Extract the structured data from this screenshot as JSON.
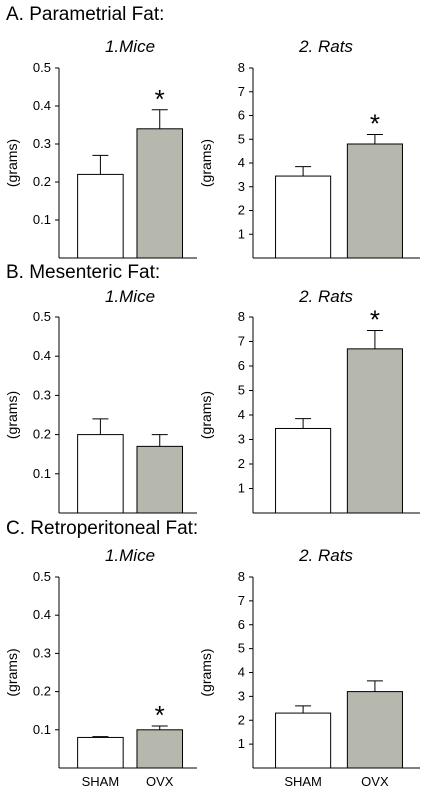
{
  "sections": [
    {
      "title": "A. Parametrial Fat:"
    },
    {
      "title": "B. Mesenteric Fat:"
    },
    {
      "title": "C. Retroperitoneal Fat:"
    }
  ],
  "colors": {
    "sham_fill": "#ffffff",
    "ovx_fill": "#b6b7ad",
    "stroke": "#000000"
  },
  "chart_data": [
    {
      "type": "bar",
      "section": "A. Parametrial Fat:",
      "title": "1.Mice",
      "ylabel": "(grams)",
      "categories": [
        "SHAM",
        "OVX"
      ],
      "show_categories": false,
      "values": [
        0.22,
        0.34
      ],
      "errors": [
        0.05,
        0.05
      ],
      "significant": [
        false,
        true
      ],
      "ylim": [
        0,
        0.5
      ],
      "yticks": [
        0.1,
        0.2,
        0.3,
        0.4,
        0.5
      ],
      "ytick_labels": [
        "0.1",
        "0.2",
        "0.3",
        "0.4",
        "0.5"
      ],
      "significance_marker": "*"
    },
    {
      "type": "bar",
      "section": "A. Parametrial Fat:",
      "title": "2. Rats",
      "ylabel": "(grams)",
      "categories": [
        "SHAM",
        "OVX"
      ],
      "show_categories": false,
      "values": [
        3.45,
        4.8
      ],
      "errors": [
        0.4,
        0.4
      ],
      "significant": [
        false,
        true
      ],
      "ylim": [
        0,
        8
      ],
      "yticks": [
        1,
        2,
        3,
        4,
        5,
        6,
        7,
        8
      ],
      "ytick_labels": [
        "1",
        "2",
        "3",
        "4",
        "5",
        "6",
        "7",
        "8"
      ],
      "significance_marker": "*"
    },
    {
      "type": "bar",
      "section": "B. Mesenteric Fat:",
      "title": "1.Mice",
      "ylabel": "(grams)",
      "categories": [
        "SHAM",
        "OVX"
      ],
      "show_categories": false,
      "values": [
        0.2,
        0.17
      ],
      "errors": [
        0.04,
        0.03
      ],
      "significant": [
        false,
        false
      ],
      "ylim": [
        0,
        0.5
      ],
      "yticks": [
        0.1,
        0.2,
        0.3,
        0.4,
        0.5
      ],
      "ytick_labels": [
        "0.1",
        "0.2",
        "0.3",
        "0.4",
        "0.5"
      ],
      "significance_marker": "*"
    },
    {
      "type": "bar",
      "section": "B. Mesenteric Fat:",
      "title": "2. Rats",
      "ylabel": "(grams)",
      "categories": [
        "SHAM",
        "OVX"
      ],
      "show_categories": false,
      "values": [
        3.45,
        6.7
      ],
      "errors": [
        0.4,
        0.75
      ],
      "significant": [
        false,
        true
      ],
      "ylim": [
        0,
        8
      ],
      "yticks": [
        1,
        2,
        3,
        4,
        5,
        6,
        7,
        8
      ],
      "ytick_labels": [
        "1",
        "2",
        "3",
        "4",
        "5",
        "6",
        "7",
        "8"
      ],
      "significance_marker": "*"
    },
    {
      "type": "bar",
      "section": "C. Retroperitoneal Fat:",
      "title": "1.Mice",
      "ylabel": "(grams)",
      "categories": [
        "SHAM",
        "OVX"
      ],
      "show_categories": true,
      "values": [
        0.08,
        0.1
      ],
      "errors": [
        0.002,
        0.01
      ],
      "significant": [
        false,
        true
      ],
      "ylim": [
        0,
        0.5
      ],
      "yticks": [
        0.1,
        0.2,
        0.3,
        0.4,
        0.5
      ],
      "ytick_labels": [
        "0.1",
        "0.2",
        "0.3",
        "0.4",
        "0.5"
      ],
      "significance_marker": "*"
    },
    {
      "type": "bar",
      "section": "C. Retroperitoneal Fat:",
      "title": "2. Rats",
      "ylabel": "(grams)",
      "categories": [
        "SHAM",
        "OVX"
      ],
      "show_categories": true,
      "values": [
        2.3,
        3.2
      ],
      "errors": [
        0.3,
        0.45
      ],
      "significant": [
        false,
        false
      ],
      "ylim": [
        0,
        8
      ],
      "yticks": [
        1,
        2,
        3,
        4,
        5,
        6,
        7,
        8
      ],
      "ytick_labels": [
        "1",
        "2",
        "3",
        "4",
        "5",
        "6",
        "7",
        "8"
      ],
      "significance_marker": "*"
    }
  ]
}
